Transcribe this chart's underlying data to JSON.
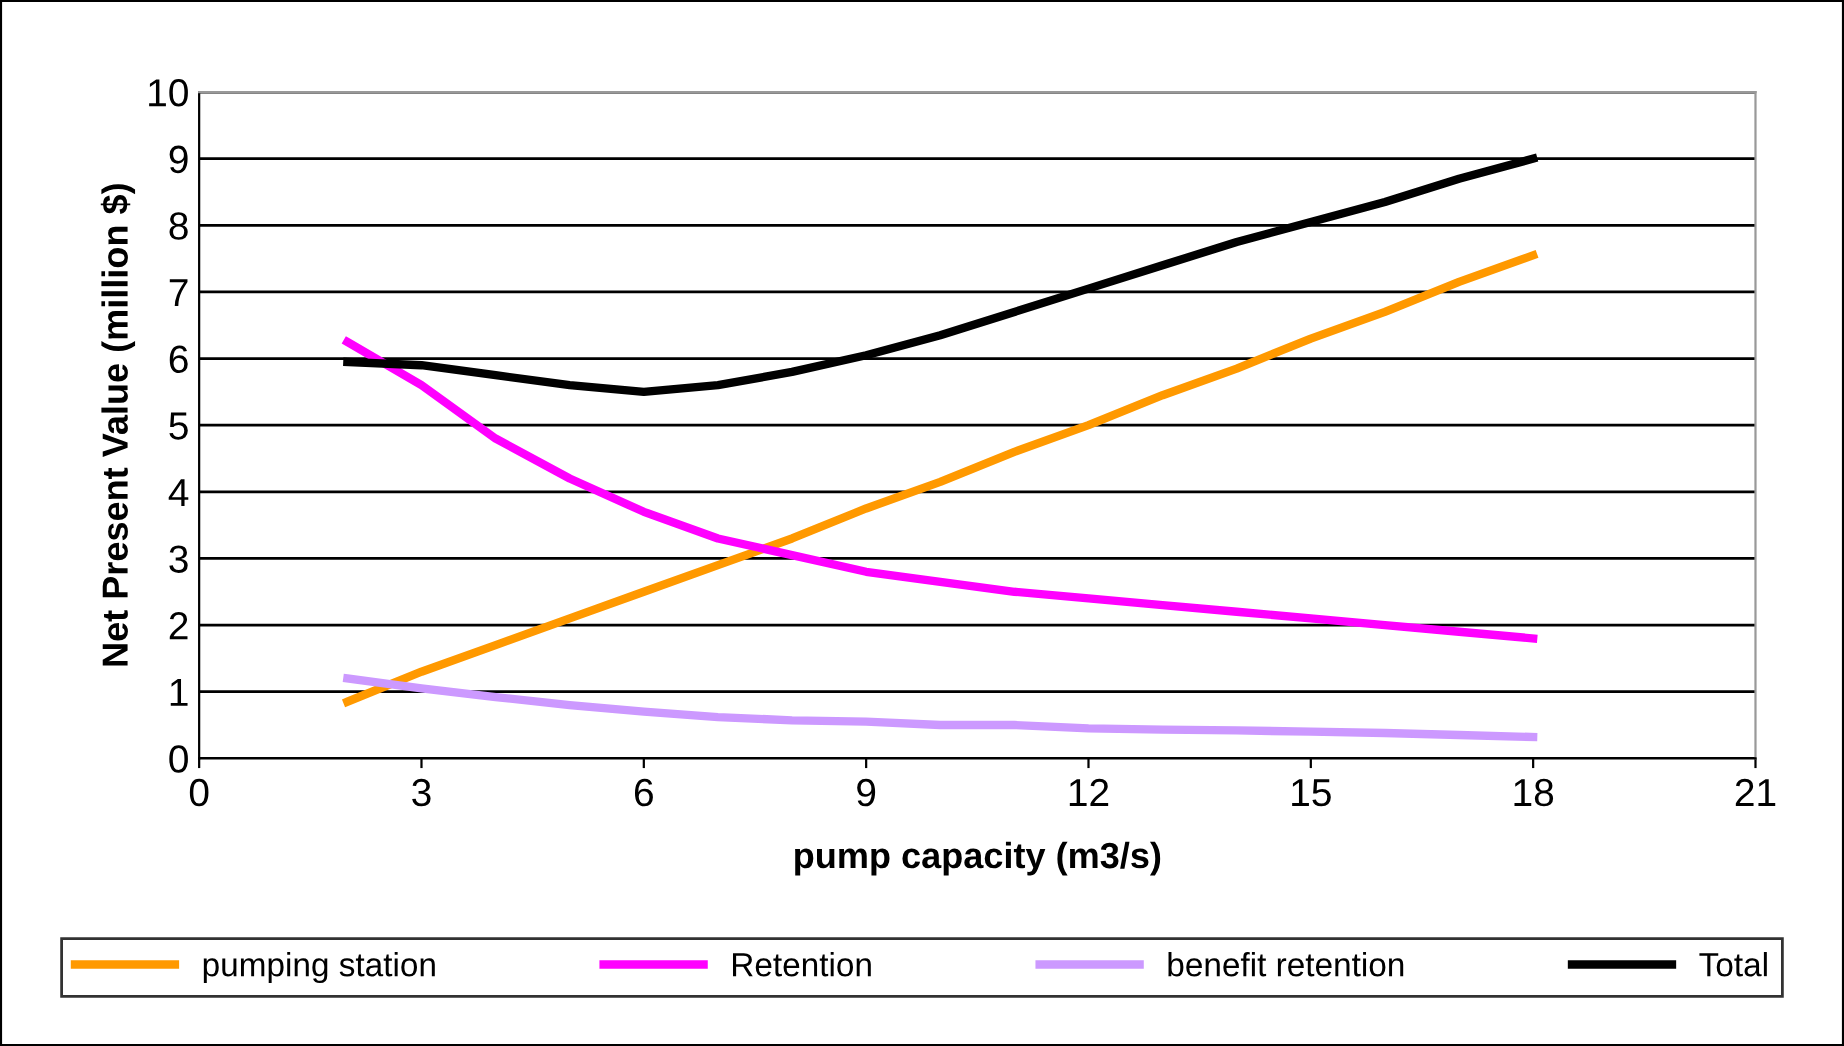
{
  "chart_data": {
    "type": "line",
    "xlabel": "pump capacity (m3/s)",
    "ylabel": "Net Present Value (million $)",
    "x": [
      2,
      3,
      4,
      5,
      6,
      7,
      8,
      9,
      10,
      11,
      12,
      13,
      14,
      15,
      16,
      17,
      18
    ],
    "xlim": [
      0,
      21
    ],
    "xticks": [
      0,
      3,
      6,
      9,
      12,
      15,
      18,
      21
    ],
    "ylim": [
      0,
      10
    ],
    "yticks": [
      0,
      1,
      2,
      3,
      4,
      5,
      6,
      7,
      8,
      9,
      10
    ],
    "grid": "y",
    "legend": "bottom",
    "marker": "none",
    "line_style": "solid",
    "series": [
      {
        "name": "pumping station",
        "color": "#ff9900",
        "values": [
          0.85,
          1.3,
          1.7,
          2.1,
          2.5,
          2.9,
          3.3,
          3.75,
          4.15,
          4.6,
          5.0,
          5.45,
          5.85,
          6.3,
          6.7,
          7.15,
          7.55
        ]
      },
      {
        "name": "Retention",
        "color": "#ff00ff",
        "values": [
          6.25,
          5.6,
          4.8,
          4.2,
          3.7,
          3.3,
          3.05,
          2.8,
          2.65,
          2.5,
          2.4,
          2.3,
          2.2,
          2.1,
          2.0,
          1.9,
          1.8
        ]
      },
      {
        "name": "benefit retention",
        "color": "#cc99ff",
        "values": [
          1.2,
          1.05,
          0.92,
          0.8,
          0.7,
          0.62,
          0.57,
          0.55,
          0.5,
          0.5,
          0.45,
          0.43,
          0.42,
          0.4,
          0.38,
          0.35,
          0.32
        ]
      },
      {
        "name": "Total",
        "color": "#000000",
        "values": [
          5.95,
          5.9,
          5.75,
          5.6,
          5.5,
          5.6,
          5.8,
          6.05,
          6.35,
          6.7,
          7.05,
          7.4,
          7.75,
          8.05,
          8.35,
          8.7,
          9.0
        ]
      }
    ]
  }
}
